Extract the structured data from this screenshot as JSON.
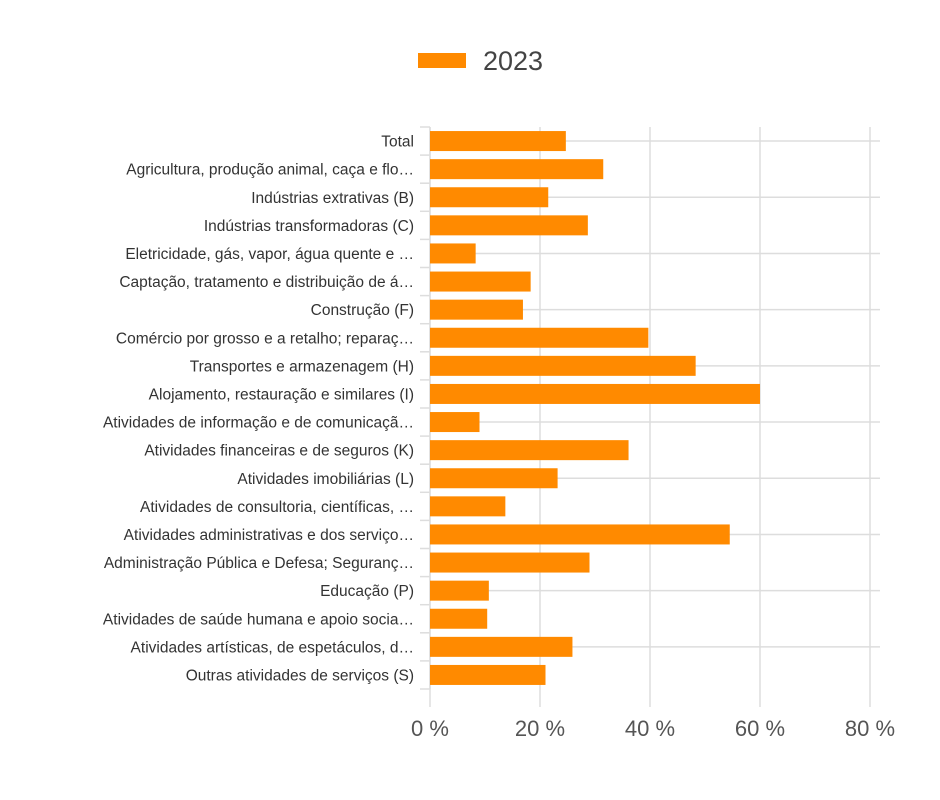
{
  "chart_data": {
    "type": "bar",
    "orientation": "horizontal",
    "legend": {
      "position": "top",
      "entries": [
        "2023"
      ]
    },
    "categories": [
      "Total",
      "Agricultura, produção animal, caça e flo…",
      "Indústrias extrativas (B)",
      "Indústrias transformadoras (C)",
      "Eletricidade, gás, vapor, água quente e …",
      "Captação, tratamento e distribuição de á…",
      "Construção (F)",
      "Comércio por grosso e a retalho; reparaç…",
      "Transportes e armazenagem (H)",
      "Alojamento, restauração e similares (I)",
      "Atividades de informação e de comunicaçã…",
      "Atividades financeiras e de seguros (K)",
      "Atividades imobiliárias (L)",
      "Atividades de consultoria, científicas, …",
      "Atividades administrativas e dos serviço…",
      "Administração Pública e Defesa; Seguranç…",
      "Educação (P)",
      "Atividades de saúde humana e apoio socia…",
      "Atividades artísticas, de espetáculos, d…",
      "Outras atividades de serviços (S)"
    ],
    "series": [
      {
        "name": "2023",
        "color": "#ff8a00",
        "values": [
          24.7,
          31.5,
          21.5,
          28.7,
          8.3,
          18.3,
          16.9,
          39.7,
          48.3,
          60.0,
          9.0,
          36.1,
          23.2,
          13.7,
          54.5,
          29.0,
          10.7,
          10.4,
          25.9,
          21.0
        ]
      }
    ],
    "xlim": [
      0,
      80
    ],
    "xticks": [
      0,
      20,
      40,
      60,
      80
    ],
    "xtick_labels": [
      "0 %",
      "20 %",
      "40 %",
      "60 %",
      "80 %"
    ],
    "grid": true,
    "xlabel": "",
    "ylabel": "",
    "title": ""
  }
}
